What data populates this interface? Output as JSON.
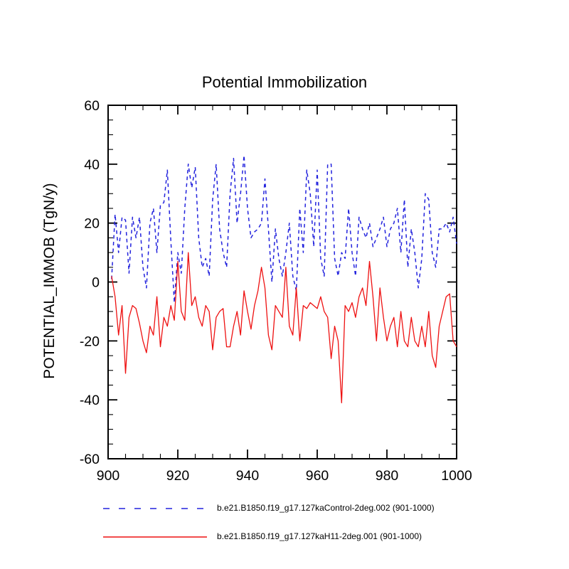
{
  "title": "Potential Immobilization",
  "ylabel": "POTENTIAL_IMMOB  (TgN/y)",
  "legend": [
    {
      "label": "b.e21.B1850.f19_g17.127kaControl-2deg.002 (901-1000)",
      "color": "#2222dd",
      "style": "dashed"
    },
    {
      "label": "b.e21.B1850.f19_g17.127kaH11-2deg.001 (901-1000)",
      "color": "#ee1111",
      "style": "solid"
    }
  ],
  "chart_data": {
    "type": "line",
    "title": "Potential Immobilization",
    "ylabel": "POTENTIAL_IMMOB  (TgN/y)",
    "xlim": [
      900,
      1000
    ],
    "ylim": [
      -60,
      60
    ],
    "x_start": 901,
    "x_major_ticks": [
      900,
      920,
      940,
      960,
      980,
      1000
    ],
    "x_minor_step": 5,
    "y_major_ticks": [
      -60,
      -40,
      -20,
      0,
      20,
      40,
      60
    ],
    "y_minor_step": 5,
    "grid": false,
    "legend_position": "bottom",
    "series": [
      {
        "name": "b.e21.B1850.f19_g17.127kaControl-2deg.002 (901-1000)",
        "color": "#2222dd",
        "style": "dashed",
        "width": 1.5,
        "values": [
          1,
          23,
          10,
          22,
          21,
          3,
          22,
          15,
          22,
          5,
          -2,
          20,
          25,
          10,
          26,
          27,
          38,
          14,
          -7,
          10,
          3,
          25,
          40,
          32,
          39,
          15,
          5,
          8,
          2,
          28,
          40,
          18,
          10,
          5,
          30,
          42,
          20,
          30,
          43,
          25,
          15,
          17,
          18,
          20,
          35,
          18,
          0,
          18,
          8,
          2,
          10,
          20,
          2,
          -3,
          25,
          10,
          38,
          30,
          12,
          38,
          8,
          2,
          40,
          40,
          8,
          2,
          10,
          8,
          25,
          10,
          2,
          22,
          18,
          15,
          20,
          12,
          15,
          18,
          22,
          12,
          18,
          20,
          25,
          10,
          28,
          5,
          18,
          10,
          -2,
          8,
          30,
          28,
          10,
          5,
          18,
          18,
          20,
          17,
          22,
          13
        ]
      },
      {
        "name": "b.e21.B1850.f19_g17.127kaH11-2deg.001 (901-1000)",
        "color": "#ee1111",
        "style": "solid",
        "width": 1.3,
        "values": [
          2,
          -5,
          -18,
          -8,
          -31,
          -12,
          -8,
          -9,
          -14,
          -20,
          -24,
          -15,
          -18,
          -5,
          -22,
          -12,
          -15,
          -8,
          -13,
          7,
          -10,
          -13,
          10,
          -8,
          -5,
          -12,
          -15,
          -8,
          -10,
          -23,
          -12,
          -10,
          -9,
          -22,
          -22,
          -15,
          -10,
          -18,
          -3,
          -10,
          -16,
          -8,
          -3,
          5,
          -2,
          -18,
          -23,
          -8,
          -10,
          -12,
          5,
          -15,
          -18,
          -2,
          -20,
          -8,
          -9,
          -7,
          -8,
          -9,
          -5,
          -10,
          -12,
          -26,
          -15,
          -20,
          -41,
          -8,
          -10,
          -7,
          -12,
          -5,
          -2,
          -8,
          7,
          -5,
          -20,
          -2,
          -12,
          -20,
          -15,
          -12,
          -22,
          -10,
          -20,
          -22,
          -12,
          -20,
          -22,
          -15,
          -22,
          -10,
          -25,
          -29,
          -15,
          -10,
          -5,
          -4,
          -20,
          -22
        ]
      }
    ]
  }
}
